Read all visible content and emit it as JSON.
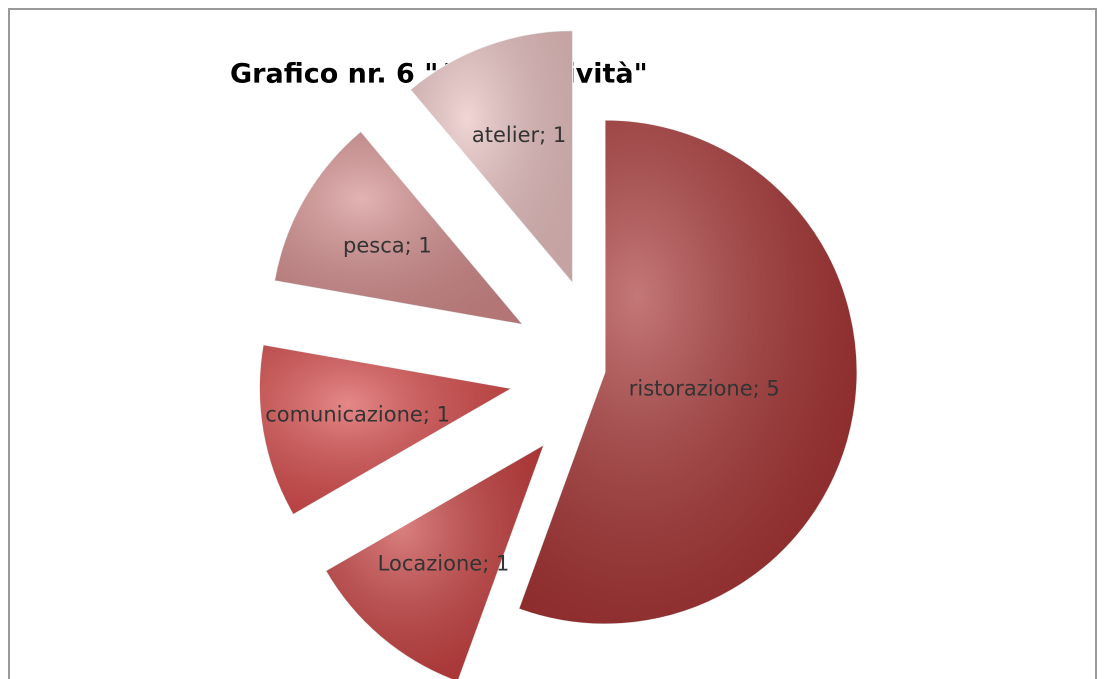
{
  "chart_data": {
    "type": "pie",
    "title": "Grafico nr. 6 \"Altre attività\"",
    "categories": [
      "ristorazione",
      "Locazione",
      "comunicazione",
      "pesca",
      "atelier"
    ],
    "values": [
      5,
      1,
      1,
      1,
      1
    ],
    "value_labels": [
      "ristorazione; 5",
      "Locazione; 1",
      "comunicazione; 1",
      "pesca; 1",
      "atelier; 1"
    ],
    "colors": [
      "#a52f2f",
      "#c63b3b",
      "#d84848",
      "#d38a8a",
      "#e9c0c0"
    ]
  }
}
